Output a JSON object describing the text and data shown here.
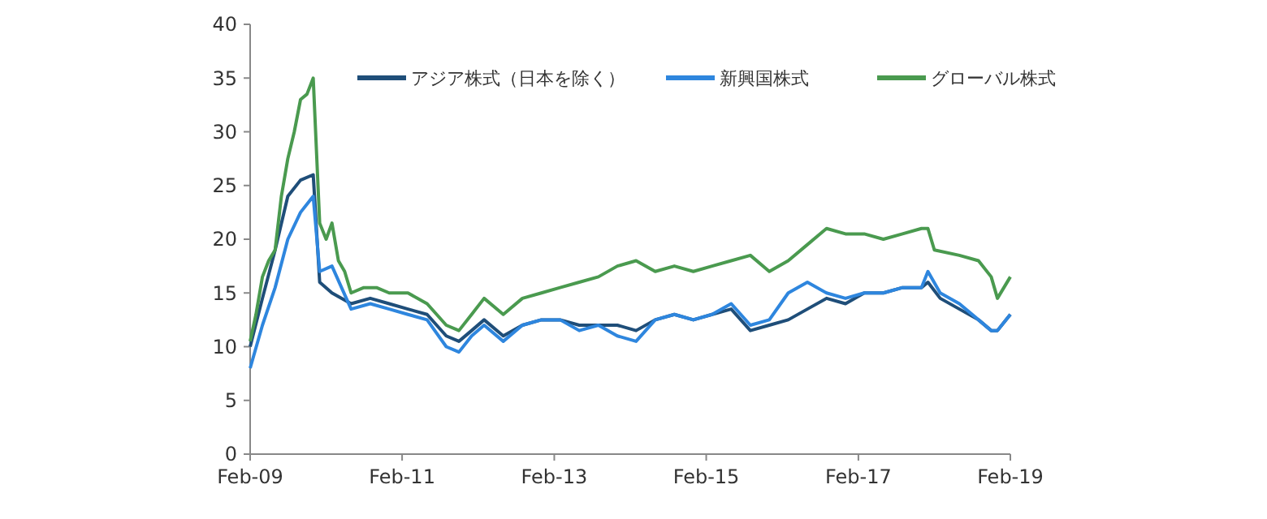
{
  "chart_data": {
    "type": "line",
    "legend": "top",
    "grid": false,
    "line_style": "solid",
    "xlim": [
      "2009-02",
      "2019-02"
    ],
    "xticks": [
      {
        "value": "2009-02",
        "label": "Feb-09"
      },
      {
        "value": "2011-02",
        "label": "Feb-11"
      },
      {
        "value": "2013-02",
        "label": "Feb-13"
      },
      {
        "value": "2015-02",
        "label": "Feb-15"
      },
      {
        "value": "2017-02",
        "label": "Feb-17"
      },
      {
        "value": "2019-02",
        "label": "Feb-19"
      }
    ],
    "ylim": [
      0,
      40
    ],
    "yticks": [
      0,
      5,
      10,
      15,
      20,
      25,
      30,
      35,
      40
    ],
    "series": [
      {
        "name": "アジア株式（日本を除く）",
        "color": "#1f4e79",
        "x": [
          "2009-02",
          "2009-04",
          "2009-06",
          "2009-08",
          "2009-10",
          "2009-12",
          "2010-01",
          "2010-03",
          "2010-06",
          "2010-09",
          "2010-12",
          "2011-03",
          "2011-06",
          "2011-09",
          "2011-11",
          "2012-01",
          "2012-03",
          "2012-06",
          "2012-09",
          "2012-12",
          "2013-03",
          "2013-06",
          "2013-09",
          "2013-12",
          "2014-03",
          "2014-06",
          "2014-09",
          "2014-12",
          "2015-03",
          "2015-06",
          "2015-09",
          "2015-12",
          "2016-03",
          "2016-06",
          "2016-09",
          "2016-12",
          "2017-03",
          "2017-06",
          "2017-09",
          "2017-12",
          "2018-01",
          "2018-03",
          "2018-06",
          "2018-09",
          "2018-11",
          "2018-12",
          "2019-02"
        ],
        "values": [
          10,
          14.5,
          19,
          24,
          25.5,
          26,
          16,
          15,
          14,
          14.5,
          14,
          13.5,
          13,
          11,
          10.5,
          11.5,
          12.5,
          11,
          12,
          12.5,
          12.5,
          12,
          12,
          12,
          11.5,
          12.5,
          13,
          12.5,
          13,
          13.5,
          11.5,
          12,
          12.5,
          13.5,
          14.5,
          14,
          15,
          15,
          15.5,
          15.5,
          16,
          14.5,
          13.5,
          12.5,
          11.5,
          11.5,
          13
        ]
      },
      {
        "name": "新興国株式",
        "color": "#2e86de",
        "x": [
          "2009-02",
          "2009-04",
          "2009-06",
          "2009-08",
          "2009-10",
          "2009-12",
          "2010-01",
          "2010-03",
          "2010-06",
          "2010-09",
          "2010-12",
          "2011-03",
          "2011-06",
          "2011-09",
          "2011-11",
          "2012-01",
          "2012-03",
          "2012-06",
          "2012-09",
          "2012-12",
          "2013-03",
          "2013-06",
          "2013-09",
          "2013-12",
          "2014-03",
          "2014-06",
          "2014-09",
          "2014-12",
          "2015-03",
          "2015-06",
          "2015-09",
          "2015-12",
          "2016-03",
          "2016-06",
          "2016-09",
          "2016-12",
          "2017-03",
          "2017-06",
          "2017-09",
          "2017-12",
          "2018-01",
          "2018-03",
          "2018-06",
          "2018-09",
          "2018-11",
          "2018-12",
          "2019-02"
        ],
        "values": [
          8,
          12,
          15.5,
          20,
          22.5,
          24,
          17,
          17.5,
          13.5,
          14,
          13.5,
          13,
          12.5,
          10,
          9.5,
          11,
          12,
          10.5,
          12,
          12.5,
          12.5,
          11.5,
          12,
          11,
          10.5,
          12.5,
          13,
          12.5,
          13,
          14,
          12,
          12.5,
          15,
          16,
          15,
          14.5,
          15,
          15,
          15.5,
          15.5,
          17,
          15,
          14,
          12.5,
          11.5,
          11.5,
          13
        ]
      },
      {
        "name": "グローバル株式",
        "color": "#4a9a4f",
        "x": [
          "2009-02",
          "2009-03",
          "2009-04",
          "2009-05",
          "2009-06",
          "2009-07",
          "2009-08",
          "2009-09",
          "2009-10",
          "2009-11",
          "2009-12",
          "2010-01",
          "2010-02",
          "2010-03",
          "2010-04",
          "2010-05",
          "2010-06",
          "2010-08",
          "2010-10",
          "2010-12",
          "2011-03",
          "2011-06",
          "2011-09",
          "2011-11",
          "2012-01",
          "2012-03",
          "2012-06",
          "2012-09",
          "2012-12",
          "2013-03",
          "2013-06",
          "2013-09",
          "2013-12",
          "2014-03",
          "2014-06",
          "2014-09",
          "2014-12",
          "2015-03",
          "2015-06",
          "2015-09",
          "2015-12",
          "2016-03",
          "2016-06",
          "2016-09",
          "2016-12",
          "2017-03",
          "2017-06",
          "2017-09",
          "2017-12",
          "2018-01",
          "2018-02",
          "2018-06",
          "2018-09",
          "2018-11",
          "2018-12",
          "2019-02"
        ],
        "values": [
          10.5,
          13,
          16.5,
          18,
          19,
          24,
          27.5,
          30,
          33,
          33.5,
          35,
          21.5,
          20,
          21.5,
          18,
          17,
          15,
          15.5,
          15.5,
          15,
          15,
          14,
          12,
          11.5,
          13,
          14.5,
          13,
          14.5,
          15,
          15.5,
          16,
          16.5,
          17.5,
          18,
          17,
          17.5,
          17,
          17.5,
          18,
          18.5,
          17,
          18,
          19.5,
          21,
          20.5,
          20.5,
          20,
          20.5,
          21,
          21,
          19,
          18.5,
          18,
          16.5,
          14.5,
          16.5
        ]
      }
    ]
  }
}
